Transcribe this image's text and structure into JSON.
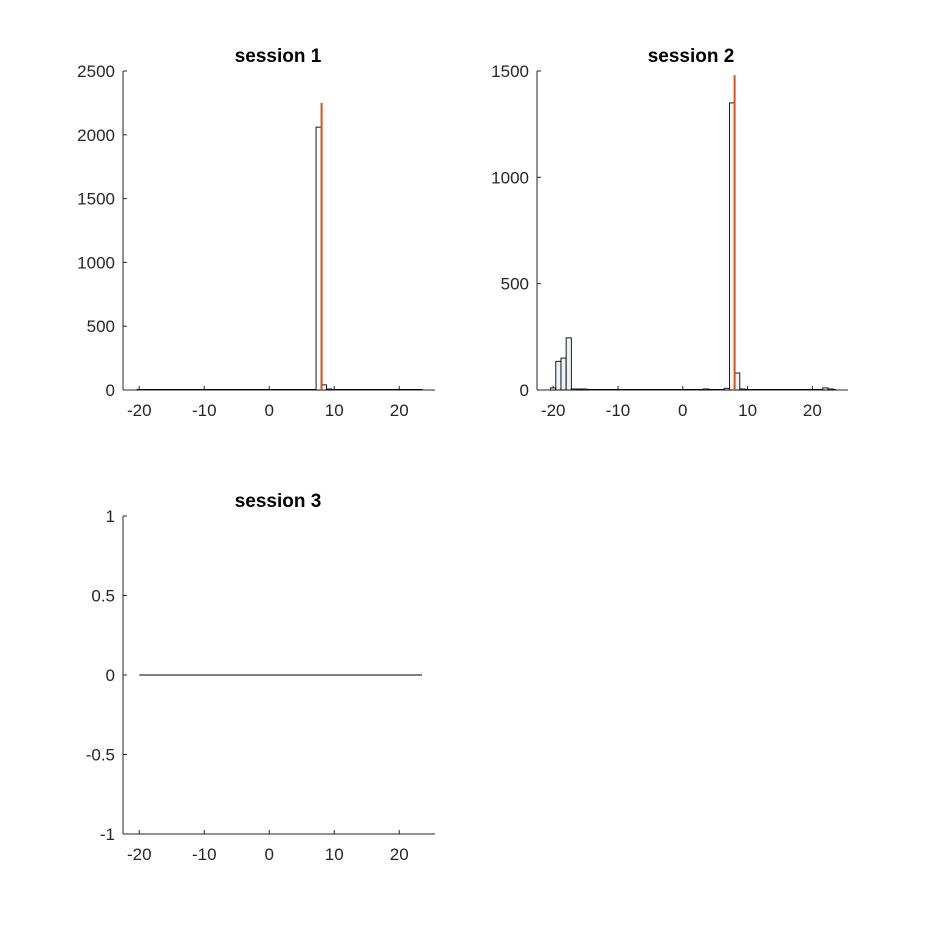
{
  "chart_data": [
    {
      "type": "bar",
      "title": "session 1",
      "xlabel": "",
      "ylabel": "",
      "xlim": [
        -22.5,
        25.5
      ],
      "ylim": [
        0,
        2500
      ],
      "xticks": [
        -20,
        -10,
        0,
        10,
        20
      ],
      "yticks": [
        0,
        500,
        1000,
        1500,
        2000,
        2500
      ],
      "xtick_labels": [
        "-20",
        "-10",
        "0",
        "10",
        "20"
      ],
      "ytick_labels": [
        "0",
        "500",
        "1000",
        "1500",
        "2000",
        "2500"
      ],
      "bin_width": 0.8,
      "bins": [
        {
          "x": 7.6,
          "count": 2060
        },
        {
          "x": 8.4,
          "count": 40
        },
        {
          "x": 9.2,
          "count": 5
        }
      ],
      "marker_line": {
        "x": 8.05,
        "y_top": 2250
      },
      "colors": {
        "bar_fill": "#ffffff",
        "bar_edge": "#000000",
        "marker": "#d95319"
      }
    },
    {
      "type": "bar",
      "title": "session 2",
      "xlabel": "",
      "ylabel": "",
      "xlim": [
        -22.5,
        25.5
      ],
      "ylim": [
        0,
        1500
      ],
      "xticks": [
        -20,
        -10,
        0,
        10,
        20
      ],
      "yticks": [
        0,
        500,
        1000,
        1500
      ],
      "xtick_labels": [
        "-20",
        "-10",
        "0",
        "10",
        "20"
      ],
      "ytick_labels": [
        "0",
        "500",
        "1000",
        "1500"
      ],
      "bin_width": 0.8,
      "bins": [
        {
          "x": -20.0,
          "count": 10
        },
        {
          "x": -19.2,
          "count": 135
        },
        {
          "x": -18.4,
          "count": 150
        },
        {
          "x": -17.6,
          "count": 245
        },
        {
          "x": -16.8,
          "count": 5
        },
        {
          "x": -16.0,
          "count": 3
        },
        {
          "x": -15.2,
          "count": 2
        },
        {
          "x": 3.6,
          "count": 5
        },
        {
          "x": 6.8,
          "count": 8
        },
        {
          "x": 7.6,
          "count": 1350
        },
        {
          "x": 8.4,
          "count": 80
        },
        {
          "x": 9.2,
          "count": 5
        },
        {
          "x": 22.0,
          "count": 10
        },
        {
          "x": 22.8,
          "count": 5
        }
      ],
      "marker_line": {
        "x": 8.0,
        "y_top": 1480
      },
      "colors": {
        "bar_fill": "#eef3f8",
        "bar_edge": "#000000",
        "marker": "#d95319"
      }
    },
    {
      "type": "line",
      "title": "session 3",
      "xlabel": "",
      "ylabel": "",
      "xlim": [
        -22.5,
        25.5
      ],
      "ylim": [
        -1,
        1
      ],
      "xticks": [
        -20,
        -10,
        0,
        10,
        20
      ],
      "yticks": [
        -1,
        -0.5,
        0,
        0.5,
        1
      ],
      "xtick_labels": [
        "-20",
        "-10",
        "0",
        "10",
        "20"
      ],
      "ytick_labels": [
        "-1",
        "-0.5",
        "0",
        "0.5",
        "1"
      ],
      "series": [
        {
          "x": [
            -20,
            23.5
          ],
          "y": [
            0,
            0
          ]
        }
      ],
      "colors": {
        "line": "#000000"
      }
    }
  ]
}
